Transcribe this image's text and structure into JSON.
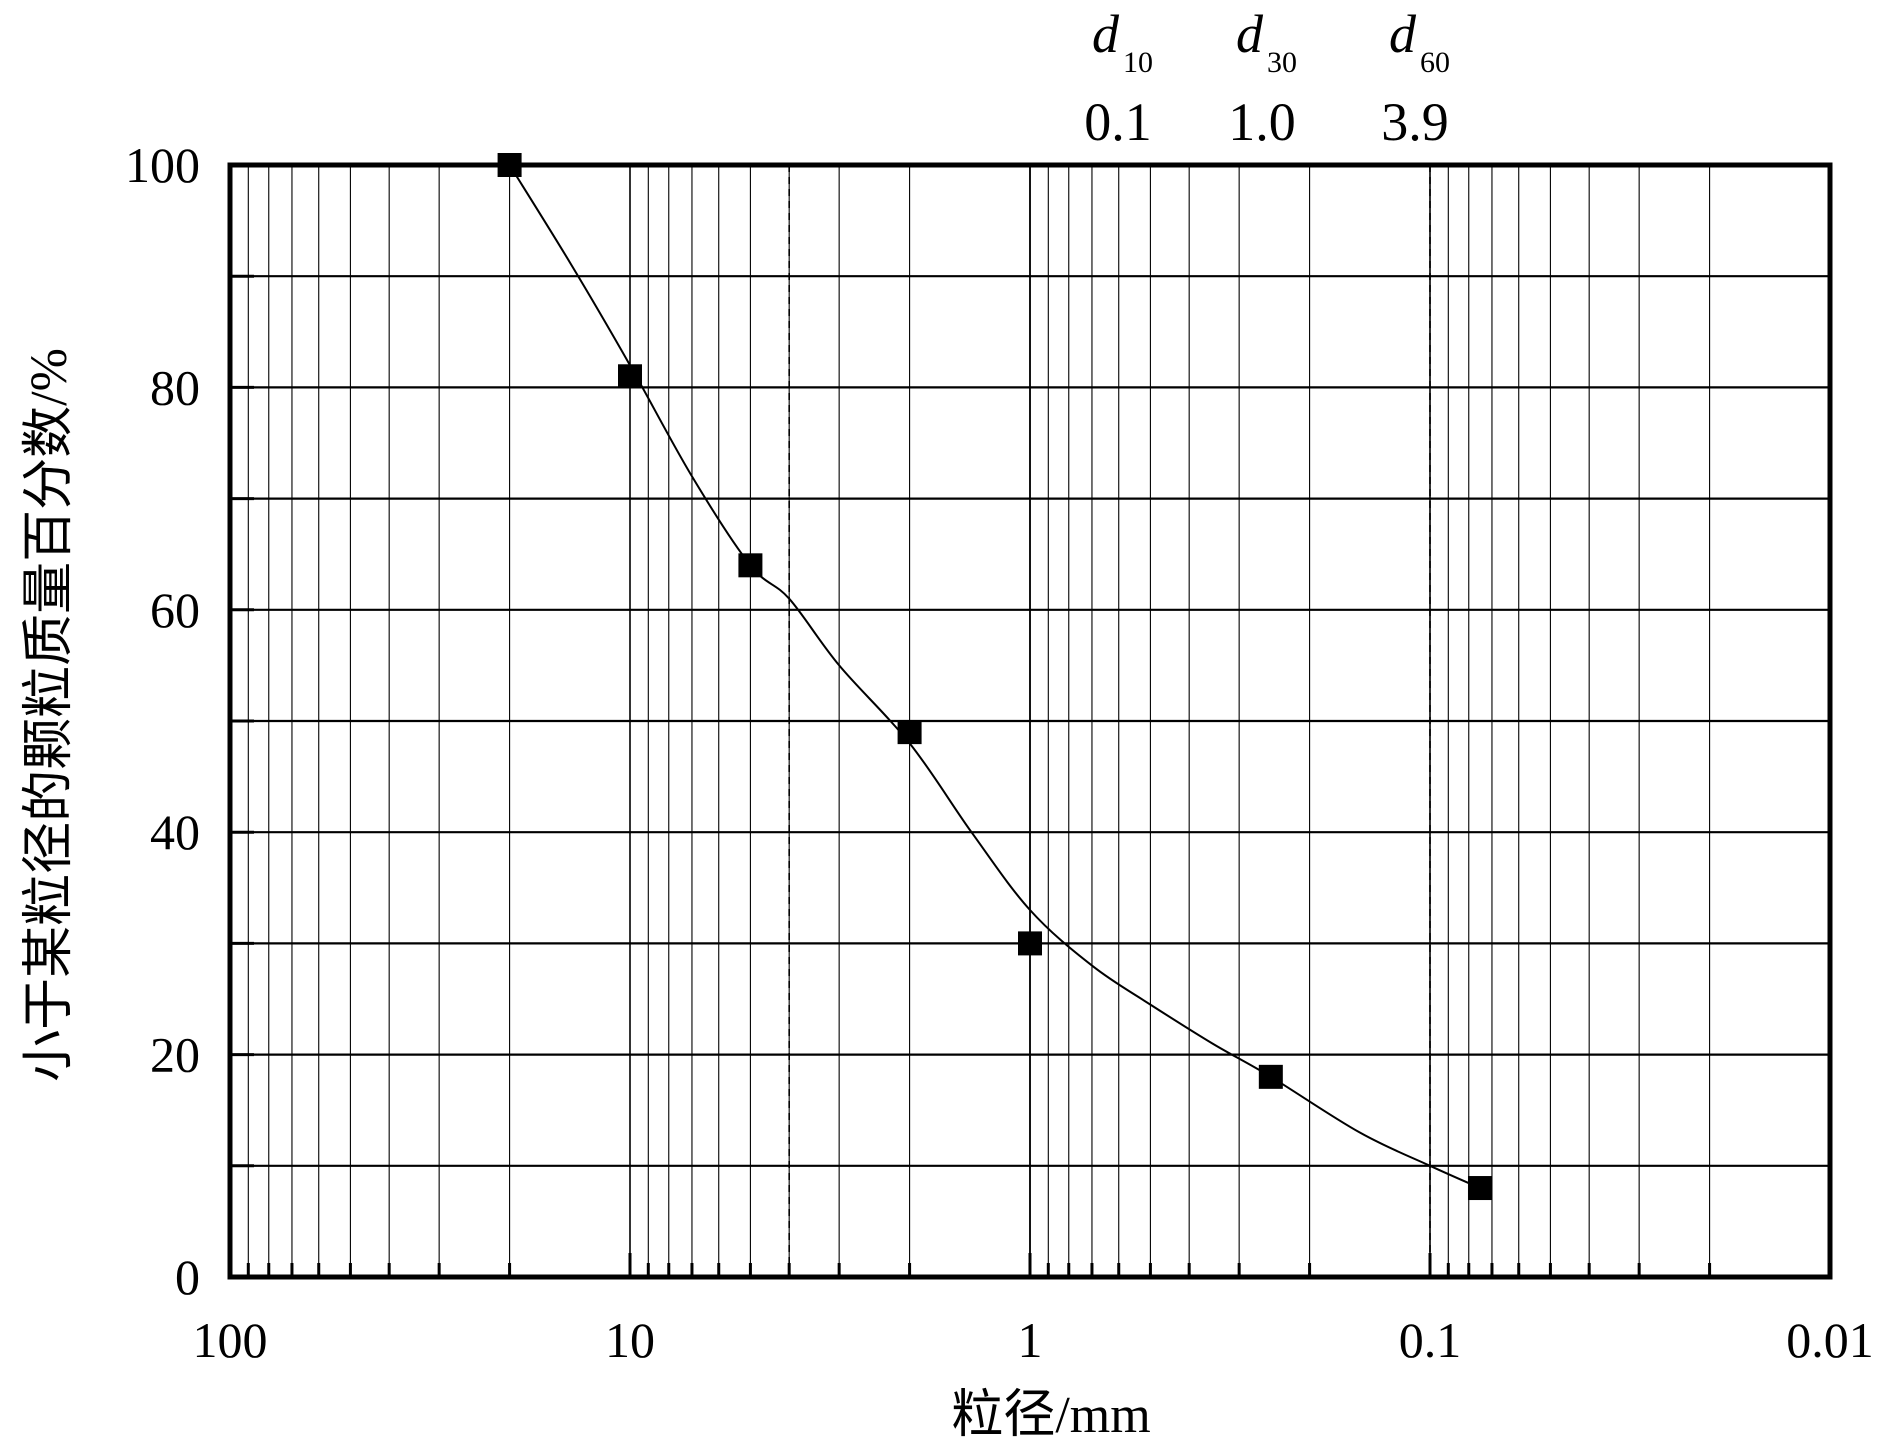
{
  "chart_data": {
    "type": "line",
    "title": "",
    "xlabel": "粒径/mm",
    "ylabel": "小于某粒径的颗粒质量百分数/%",
    "x_scale": "log",
    "x_reversed": true,
    "xlim": [
      100,
      0.01
    ],
    "ylim": [
      0,
      100
    ],
    "x_tick_values": [
      100,
      10,
      1,
      0.1,
      0.01
    ],
    "x_tick_labels": [
      "100",
      "10",
      "1",
      "0.1",
      "0.01"
    ],
    "y_tick_values": [
      0,
      20,
      40,
      60,
      80,
      100
    ],
    "y_tick_labels": [
      "0",
      "20",
      "40",
      "60",
      "80",
      "100"
    ],
    "grid": true,
    "series": [
      {
        "points": [
          {
            "x": 20,
            "y": 100
          },
          {
            "x": 10,
            "y": 81
          },
          {
            "x": 5,
            "y": 64
          },
          {
            "x": 2,
            "y": 49
          },
          {
            "x": 1,
            "y": 30
          },
          {
            "x": 0.25,
            "y": 18
          },
          {
            "x": 0.075,
            "y": 8
          }
        ],
        "marker": "square",
        "color": "#000000"
      }
    ],
    "fit_curve": [
      {
        "x": 20,
        "y": 100
      },
      {
        "x": 14,
        "y": 91
      },
      {
        "x": 10,
        "y": 82
      },
      {
        "x": 7,
        "y": 72
      },
      {
        "x": 5,
        "y": 64
      },
      {
        "x": 4,
        "y": 61
      },
      {
        "x": 3,
        "y": 55
      },
      {
        "x": 2,
        "y": 48
      },
      {
        "x": 1.4,
        "y": 40
      },
      {
        "x": 1,
        "y": 33
      },
      {
        "x": 0.7,
        "y": 28
      },
      {
        "x": 0.5,
        "y": 24.5
      },
      {
        "x": 0.35,
        "y": 21
      },
      {
        "x": 0.25,
        "y": 18
      },
      {
        "x": 0.15,
        "y": 13
      },
      {
        "x": 0.1,
        "y": 10
      },
      {
        "x": 0.075,
        "y": 8
      }
    ],
    "reference_lines": [
      {
        "x": 4,
        "style": "dashed"
      },
      {
        "x": 1,
        "style": "solid"
      },
      {
        "x": 0.1,
        "style": "dashed"
      }
    ],
    "annotations": [
      {
        "symbol": "d",
        "subscript": "10",
        "value": "0.1"
      },
      {
        "symbol": "d",
        "subscript": "30",
        "value": "1.0"
      },
      {
        "symbol": "d",
        "subscript": "60",
        "value": "3.9"
      }
    ]
  }
}
